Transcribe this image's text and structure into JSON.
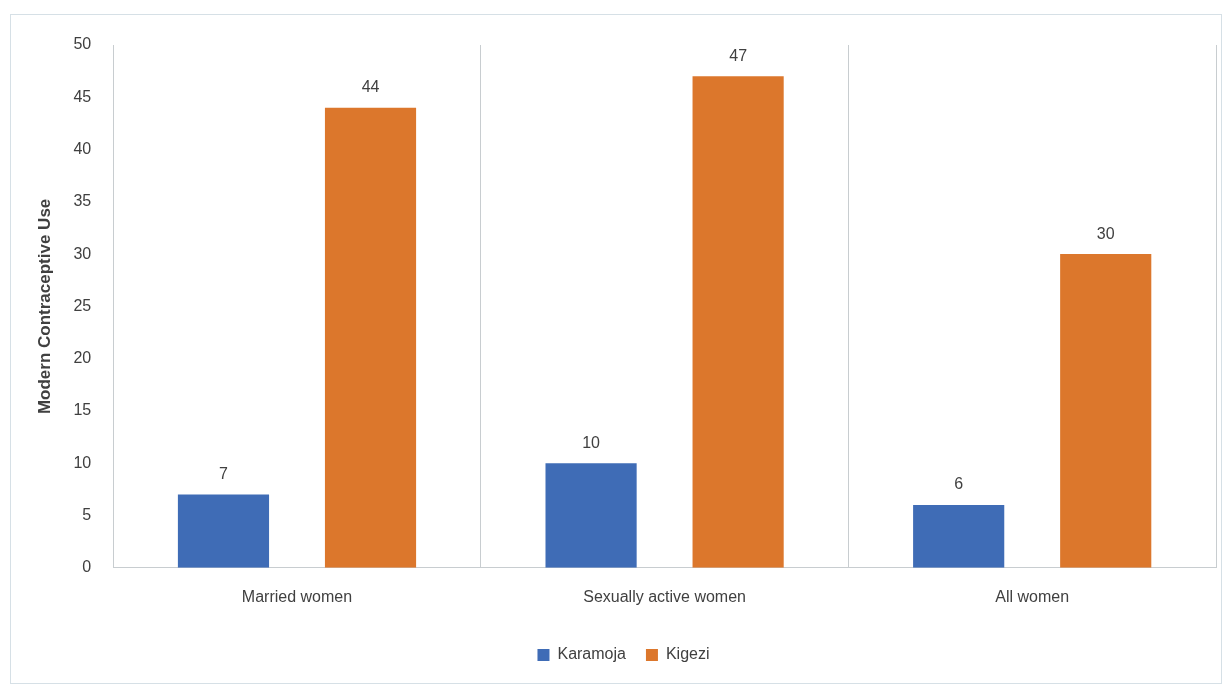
{
  "chart_data": {
    "type": "bar",
    "ylabel": "Modern Contraceptive Use",
    "categories": [
      "Married women",
      "Sexually active women",
      "All women"
    ],
    "series": [
      {
        "name": "Karamoja",
        "color": "#3f6cb6",
        "values": [
          7,
          10,
          6
        ]
      },
      {
        "name": "Kigezi",
        "color": "#dc772c",
        "values": [
          44,
          47,
          30
        ]
      }
    ],
    "ylim": [
      0,
      50
    ],
    "yticks": [
      0,
      5,
      10,
      15,
      20,
      25,
      30,
      35,
      40,
      45,
      50
    ],
    "grid": "x",
    "legend": "bottom",
    "data_labels": true
  }
}
